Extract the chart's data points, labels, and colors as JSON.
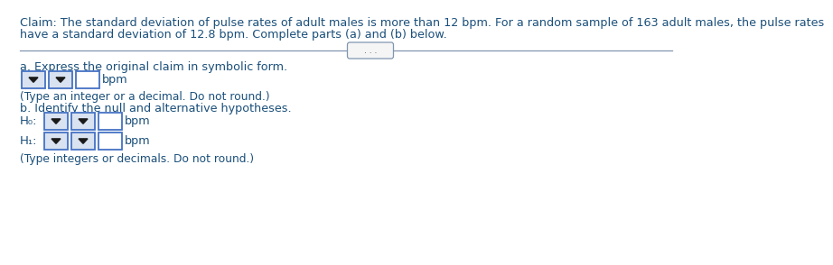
{
  "background_color": "#ffffff",
  "claim_line1": "Claim: The standard deviation of pulse rates of adult males is more than 12 bpm. For a random sample of 163 adult males, the pulse rates",
  "claim_line2": "have a standard deviation of 12.8 bpm. Complete parts (a) and (b) below.",
  "dots_text": ". . .",
  "part_a_label": "a. Express the original claim in symbolic form.",
  "part_a_hint": "(Type an integer or a decimal. Do not round.)",
  "part_b_label": "b. Identify the null and alternative hypotheses.",
  "part_b_hint": "(Type integers or decimals. Do not round.)",
  "bpm_text": "bpm",
  "H0_text": "H₀:",
  "H1_text": "H₁:",
  "text_color": "#1a4f7a",
  "dropdown_border": "#4472c4",
  "dropdown_fill": "#d9e2f0",
  "input_border": "#4472c4",
  "divider_color": "#8096b0",
  "dots_border": "#8096b0",
  "triangle_color": "#1a1a1a",
  "font_size_claim": 9.2,
  "font_size_label": 9.2,
  "font_size_hint": 8.8,
  "font_size_h": 9.5
}
